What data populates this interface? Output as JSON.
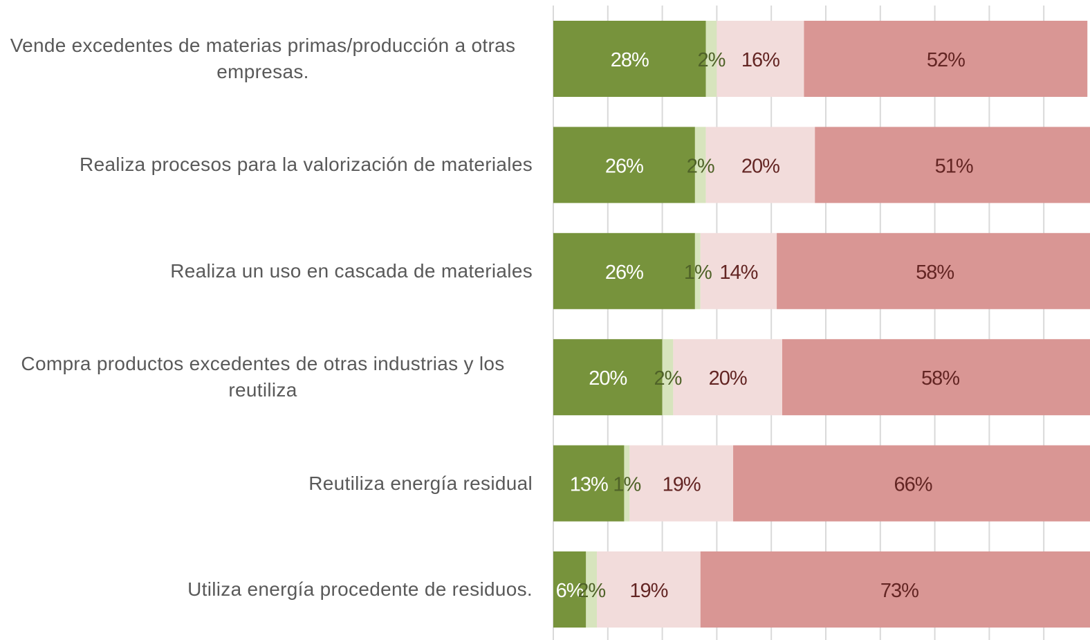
{
  "chart_data": {
    "type": "stacked_bar_horizontal",
    "categories": [
      "Vende excedentes de materias primas/producción a otras empresas.",
      "Realiza procesos para la valorización de materiales",
      "Realiza un uso en cascada de materiales",
      "Compra productos excedentes de otras industrias y los reutiliza",
      "Reutiliza energía residual",
      "Utiliza energía procedente de residuos."
    ],
    "series": [
      {
        "color": "#77933c",
        "label_color": "#ffffff",
        "values": [
          28,
          26,
          26,
          20,
          13,
          6
        ],
        "value_labels": [
          "28%",
          "26%",
          "26%",
          "20%",
          "13%",
          "6%"
        ]
      },
      {
        "color": "#d7e4bd",
        "label_color": "#4f6228",
        "values": [
          2,
          2,
          1,
          2,
          1,
          2
        ],
        "value_labels": [
          "2%",
          "2%",
          "1%",
          "2%",
          "1%",
          "2%"
        ]
      },
      {
        "color": "#f2dcdb",
        "label_color": "#632523",
        "values": [
          16,
          20,
          14,
          20,
          19,
          19
        ],
        "value_labels": [
          "16%",
          "20%",
          "14%",
          "20%",
          "19%",
          "19%"
        ]
      },
      {
        "color": "#d99694",
        "label_color": "#632523",
        "values": [
          52,
          51,
          58,
          58,
          66,
          73
        ],
        "value_labels": [
          "52%",
          "51%",
          "58%",
          "58%",
          "66%",
          "73%"
        ]
      }
    ],
    "xlim": [
      0,
      100
    ],
    "xticks": [
      0,
      10,
      20,
      30,
      40,
      50,
      60,
      70,
      80,
      90
    ],
    "grid": true
  }
}
